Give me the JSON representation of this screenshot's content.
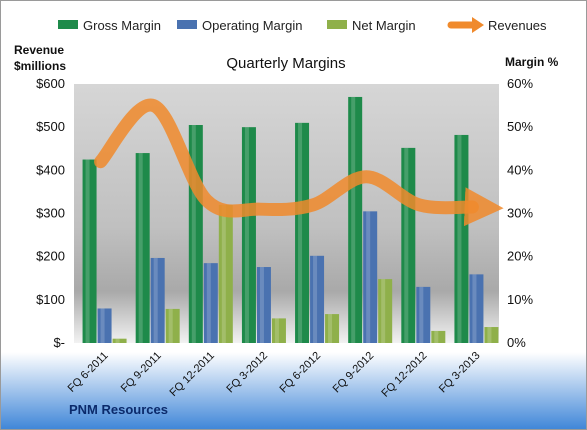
{
  "chart_data": {
    "type": "bar",
    "title": "Quarterly Margins",
    "source": "PNM Resources",
    "left_axis_title_line1": "Revenue",
    "left_axis_title_line2": "$millions",
    "right_axis_title": "Margin %",
    "categories": [
      "FQ 6-2011",
      "FQ 9-2011",
      "FQ 12-2011",
      "FQ 3-2012",
      "FQ 6-2012",
      "FQ 9-2012",
      "FQ 12-2012",
      "FQ 3-2013"
    ],
    "left_ticks": [
      "$600",
      "$500",
      "$400",
      "$300",
      "$200",
      "$100",
      "$-"
    ],
    "right_ticks": [
      "60%",
      "50%",
      "40%",
      "30%",
      "20%",
      "10%",
      "0%"
    ],
    "ylim_left": [
      0,
      600
    ],
    "ylim_right": [
      0,
      60
    ],
    "grid": false,
    "legend_position": "top",
    "series": [
      {
        "name": "Gross Margin",
        "type": "bar",
        "axis": "right",
        "color": "#1e8a4a",
        "values": [
          42.5,
          44,
          50.5,
          50,
          51,
          57,
          45.2,
          48.2
        ]
      },
      {
        "name": "Operating Margin",
        "type": "bar",
        "axis": "right",
        "color": "#4a72b0",
        "values": [
          8,
          19.7,
          18.5,
          17.6,
          20.2,
          30.5,
          13,
          15.9
        ]
      },
      {
        "name": "Net Margin",
        "type": "bar",
        "axis": "right",
        "color": "#8fb04a",
        "values": [
          1,
          7.9,
          32,
          5.7,
          6.7,
          14.8,
          2.8,
          3.7
        ]
      },
      {
        "name": "Revenues",
        "type": "line",
        "axis": "left",
        "color": "#f08a2c",
        "values": [
          420,
          550,
          330,
          310,
          320,
          385,
          320,
          315
        ]
      }
    ]
  }
}
